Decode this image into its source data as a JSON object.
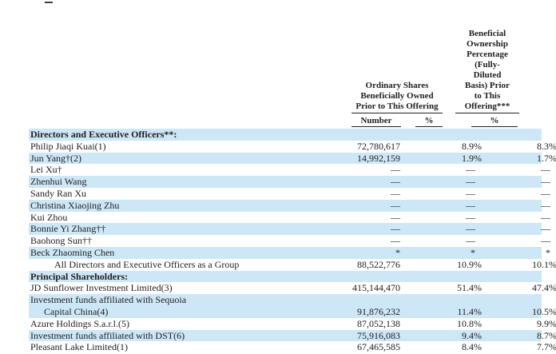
{
  "colors": {
    "row_shade": "#cde7f7",
    "rule": "#222222",
    "text": "#1f1f1f"
  },
  "stray_mark": "—",
  "table": {
    "column_groups": [
      {
        "id": "ordinary_shares",
        "lines": [
          "Ordinary Shares",
          "Beneficially Owned",
          "Prior to This Offering"
        ],
        "subcolumns": [
          {
            "label": "Number"
          },
          {
            "label": "%"
          }
        ]
      },
      {
        "id": "fully_diluted",
        "lines": [
          "Beneficial",
          "Ownership",
          "Percentage",
          "(Fully-",
          "Diluted",
          "Basis) Prior",
          "to This",
          "Offering***"
        ],
        "subcolumns": [
          {
            "label": "%"
          }
        ]
      }
    ],
    "rows": [
      {
        "label": "Directors and Executive Officers**:",
        "bold": true,
        "shaded": true,
        "num": "",
        "pct": "",
        "fd": ""
      },
      {
        "label": "Philip Jiaqi Kuai(1)",
        "shaded": false,
        "num": "72,780,617",
        "pct": "8.9%",
        "fd": "8.3%"
      },
      {
        "label": "Jun Yang†(2)",
        "shaded": true,
        "num": "14,992,159",
        "pct": "1.9%",
        "fd": "1.7%"
      },
      {
        "label": "Lei Xu†",
        "shaded": false,
        "num": "—",
        "pct": "—",
        "fd": "—"
      },
      {
        "label": "Zhenhui Wang",
        "shaded": true,
        "num": "—",
        "pct": "—",
        "fd": "—"
      },
      {
        "label": "Sandy Ran Xu",
        "shaded": false,
        "num": "—",
        "pct": "—",
        "fd": "—"
      },
      {
        "label": "Christina Xiaojing Zhu",
        "shaded": true,
        "num": "—",
        "pct": "—",
        "fd": "—"
      },
      {
        "label": "Kui Zhou",
        "shaded": false,
        "num": "—",
        "pct": "—",
        "fd": "—"
      },
      {
        "label": "Bonnie Yi Zhang††",
        "shaded": true,
        "num": "—",
        "pct": "—",
        "fd": "—"
      },
      {
        "label": "Baohong Sun††",
        "shaded": false,
        "num": "—",
        "pct": "—",
        "fd": "—"
      },
      {
        "label": "Beck Zhaoming Chen",
        "shaded": true,
        "num": "*",
        "pct": "*",
        "fd": "*"
      },
      {
        "label": "All Directors and Executive Officers as a Group",
        "indent": 30,
        "shaded": false,
        "num": "88,522,776",
        "pct": "10.9%",
        "fd": "10.1%"
      },
      {
        "label": "Principal Shareholders:",
        "bold": true,
        "shaded": true,
        "num": "",
        "pct": "",
        "fd": ""
      },
      {
        "label": "JD Sunflower Investment Limited(3)",
        "shaded": false,
        "num": "415,144,470",
        "pct": "51.4%",
        "fd": "47.4%"
      },
      {
        "label": "Investment funds affiliated with Sequoia",
        "shaded": true,
        "num": "",
        "pct": "",
        "fd": ""
      },
      {
        "label": "Capital China(4)",
        "indent": 17,
        "shaded": true,
        "num": "91,876,232",
        "pct": "11.4%",
        "fd": "10.5%"
      },
      {
        "label": "Azure Holdings S.a.r.l.(5)",
        "shaded": false,
        "num": "87,052,138",
        "pct": "10.8%",
        "fd": "9.9%"
      },
      {
        "label": "Investment funds affiliated with DST(6)",
        "shaded": true,
        "num": "75,916,083",
        "pct": "9.4%",
        "fd": "8.7%"
      },
      {
        "label": "Pleasant Lake Limited(1)",
        "shaded": false,
        "num": "67,465,585",
        "pct": "8.4%",
        "fd": "7.7%"
      }
    ]
  }
}
